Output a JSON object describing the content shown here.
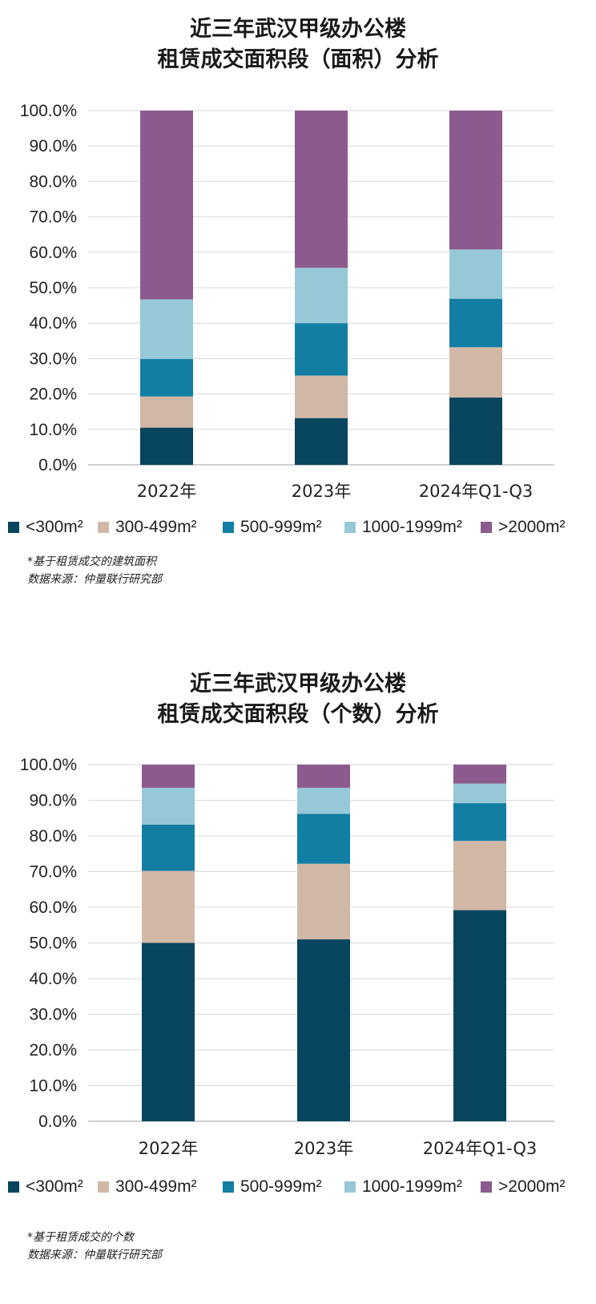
{
  "colors": {
    "lt300": "#08455e",
    "300_499": "#d1b8a6",
    "500_999": "#137ea3",
    "1000_1999": "#97c8d7",
    "gt2000": "#8c5a8e"
  },
  "legend": [
    {
      "label": "<300m²",
      "color_key": "lt300"
    },
    {
      "label": "300-499m²",
      "color_key": "300_499"
    },
    {
      "label": "500-999m²",
      "color_key": "500_999"
    },
    {
      "label": "1000-1999m²",
      "color_key": "1000_1999"
    },
    {
      "label": ">2000m²",
      "color_key": "gt2000"
    }
  ],
  "chart_data": [
    {
      "type": "bar",
      "stacked": true,
      "title_line1": "近三年武汉甲级办公楼",
      "title_line2": "租赁成交面积段（面积）分析",
      "categories": [
        "2022年",
        "2023年",
        "2024年Q1-Q3"
      ],
      "ylim": [
        0,
        100
      ],
      "yticks": [
        "0.0%",
        "10.0%",
        "20.0%",
        "30.0%",
        "40.0%",
        "50.0%",
        "60.0%",
        "70.0%",
        "80.0%",
        "90.0%",
        "100.0%"
      ],
      "grid": true,
      "legend_position": "bottom",
      "series": [
        {
          "name": "<300m²",
          "color_key": "lt300",
          "values": [
            10.5,
            13.2,
            19.0
          ]
        },
        {
          "name": "300-499m²",
          "color_key": "300_499",
          "values": [
            8.8,
            12.0,
            14.2
          ]
        },
        {
          "name": "500-999m²",
          "color_key": "500_999",
          "values": [
            10.6,
            14.8,
            13.7
          ]
        },
        {
          "name": "1000-1999m²",
          "color_key": "1000_1999",
          "values": [
            16.8,
            15.6,
            13.9
          ]
        },
        {
          "name": ">2000m²",
          "color_key": "gt2000",
          "values": [
            53.3,
            44.4,
            39.2
          ]
        }
      ],
      "notes": [
        "*基于租赁成交的建筑面积",
        "数据来源：仲量联行研究部"
      ]
    },
    {
      "type": "bar",
      "stacked": true,
      "title_line1": "近三年武汉甲级办公楼",
      "title_line2": "租赁成交面积段（个数）分析",
      "categories": [
        "2022年",
        "2023年",
        "2024年Q1-Q3"
      ],
      "ylim": [
        0,
        100
      ],
      "yticks": [
        "0.0%",
        "10.0%",
        "20.0%",
        "30.0%",
        "40.0%",
        "50.0%",
        "60.0%",
        "70.0%",
        "80.0%",
        "90.0%",
        "100.0%"
      ],
      "grid": true,
      "legend_position": "bottom",
      "series": [
        {
          "name": "<300m²",
          "color_key": "lt300",
          "values": [
            50.0,
            51.0,
            59.2
          ]
        },
        {
          "name": "300-499m²",
          "color_key": "300_499",
          "values": [
            20.2,
            21.2,
            19.4
          ]
        },
        {
          "name": "500-999m²",
          "color_key": "500_999",
          "values": [
            13.0,
            14.0,
            10.6
          ]
        },
        {
          "name": "1000-1999m²",
          "color_key": "1000_1999",
          "values": [
            10.3,
            7.3,
            5.5
          ]
        },
        {
          "name": ">2000m²",
          "color_key": "gt2000",
          "values": [
            6.5,
            6.5,
            5.3
          ]
        }
      ],
      "notes": [
        "*基于租赁成交的个数",
        "数据来源：仲量联行研究部"
      ]
    }
  ]
}
